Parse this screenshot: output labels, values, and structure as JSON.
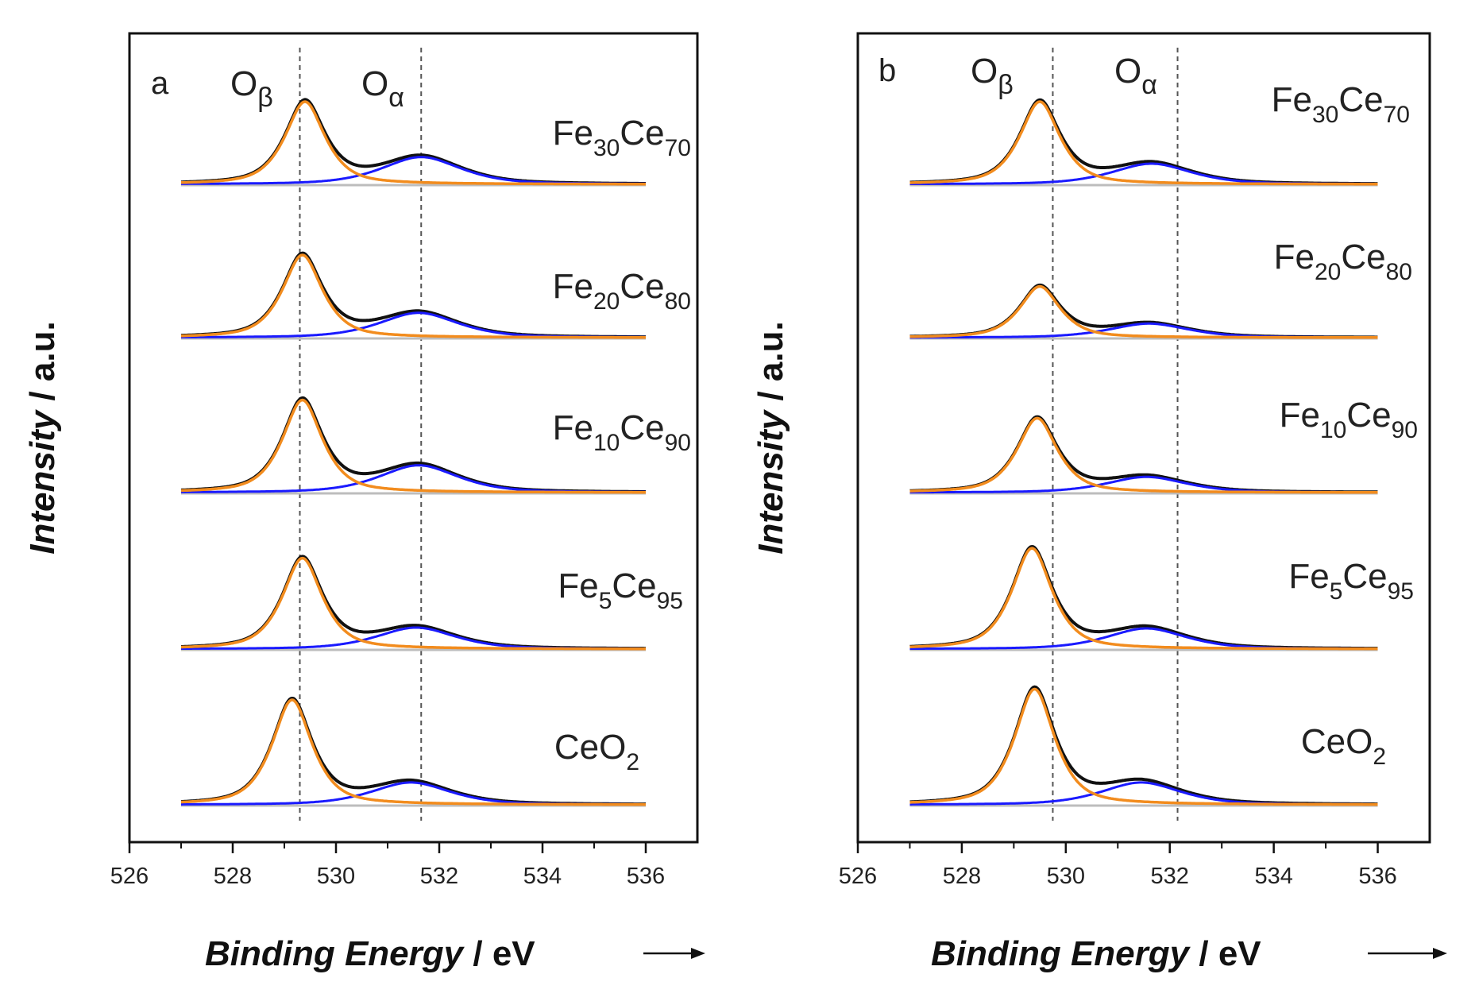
{
  "chart_data": [
    {
      "type": "line",
      "panel_label": "a",
      "xlabel": "Binding Energy",
      "xunit": "eV",
      "ylabel": "Intensity",
      "yunit": "a.u.",
      "xlim": [
        526,
        537
      ],
      "xticks": [
        526,
        528,
        530,
        532,
        534,
        536
      ],
      "peaks": [
        {
          "main": "O",
          "sub": "β",
          "position": 529.3
        },
        {
          "main": "O",
          "sub": "α",
          "position": 531.65
        }
      ],
      "series": [
        {
          "name": "Fe30Ce70",
          "label": {
            "base1": "Fe",
            "sub1": "30",
            "base2": "Ce",
            "sub2": "70"
          },
          "beta_center": 529.4,
          "beta_height": 1.0,
          "alpha_center": 531.65,
          "alpha_height": 0.33
        },
        {
          "name": "Fe20Ce80",
          "label": {
            "base1": "Fe",
            "sub1": "20",
            "base2": "Ce",
            "sub2": "80"
          },
          "beta_center": 529.35,
          "beta_height": 1.0,
          "alpha_center": 531.6,
          "alpha_height": 0.3
        },
        {
          "name": "Fe10Ce90",
          "label": {
            "base1": "Fe",
            "sub1": "10",
            "base2": "Ce",
            "sub2": "90"
          },
          "beta_center": 529.35,
          "beta_height": 1.12,
          "alpha_center": 531.6,
          "alpha_height": 0.33
        },
        {
          "name": "Fe5Ce95",
          "label": {
            "base1": "Fe",
            "sub1": "5",
            "base2": "Ce",
            "sub2": "95"
          },
          "beta_center": 529.35,
          "beta_height": 1.1,
          "alpha_center": 531.55,
          "alpha_height": 0.26
        },
        {
          "name": "CeO2",
          "label": {
            "base1": "CeO",
            "sub1": "2",
            "base2": "",
            "sub2": ""
          },
          "beta_center": 529.15,
          "beta_height": 1.27,
          "alpha_center": 531.45,
          "alpha_height": 0.27
        }
      ]
    },
    {
      "type": "line",
      "panel_label": "b",
      "xlabel": "Binding Energy",
      "xunit": "eV",
      "ylabel": "Intensity",
      "yunit": "a.u.",
      "xlim": [
        526,
        537
      ],
      "xticks": [
        526,
        528,
        530,
        532,
        534,
        536
      ],
      "peaks": [
        {
          "main": "O",
          "sub": "β",
          "position": 529.75
        },
        {
          "main": "O",
          "sub": "α",
          "position": 532.15
        }
      ],
      "series": [
        {
          "name": "Fe30Ce70",
          "label": {
            "base1": "Fe",
            "sub1": "30",
            "base2": "Ce",
            "sub2": "70"
          },
          "beta_center": 529.5,
          "beta_height": 1.0,
          "alpha_center": 531.65,
          "alpha_height": 0.25
        },
        {
          "name": "Fe20Ce80",
          "label": {
            "base1": "Fe",
            "sub1": "20",
            "base2": "Ce",
            "sub2": "80"
          },
          "beta_center": 529.5,
          "beta_height": 0.62,
          "alpha_center": 531.6,
          "alpha_height": 0.17
        },
        {
          "name": "Fe10Ce90",
          "label": {
            "base1": "Fe",
            "sub1": "10",
            "base2": "Ce",
            "sub2": "90"
          },
          "beta_center": 529.45,
          "beta_height": 0.9,
          "alpha_center": 531.55,
          "alpha_height": 0.19
        },
        {
          "name": "Fe5Ce95",
          "label": {
            "base1": "Fe",
            "sub1": "5",
            "base2": "Ce",
            "sub2": "95"
          },
          "beta_center": 529.35,
          "beta_height": 1.22,
          "alpha_center": 531.55,
          "alpha_height": 0.25
        },
        {
          "name": "CeO2",
          "label": {
            "base1": "CeO",
            "sub1": "2",
            "base2": "",
            "sub2": ""
          },
          "beta_center": 529.4,
          "beta_height": 1.4,
          "alpha_center": 531.45,
          "alpha_height": 0.27
        }
      ]
    }
  ],
  "colors": {
    "envelope": "#111111",
    "beta_component": "#f28c1e",
    "alpha_component": "#1a1aff",
    "baseline": "#bdbdbd",
    "reference_line": "#555555",
    "axis": "#111111"
  }
}
